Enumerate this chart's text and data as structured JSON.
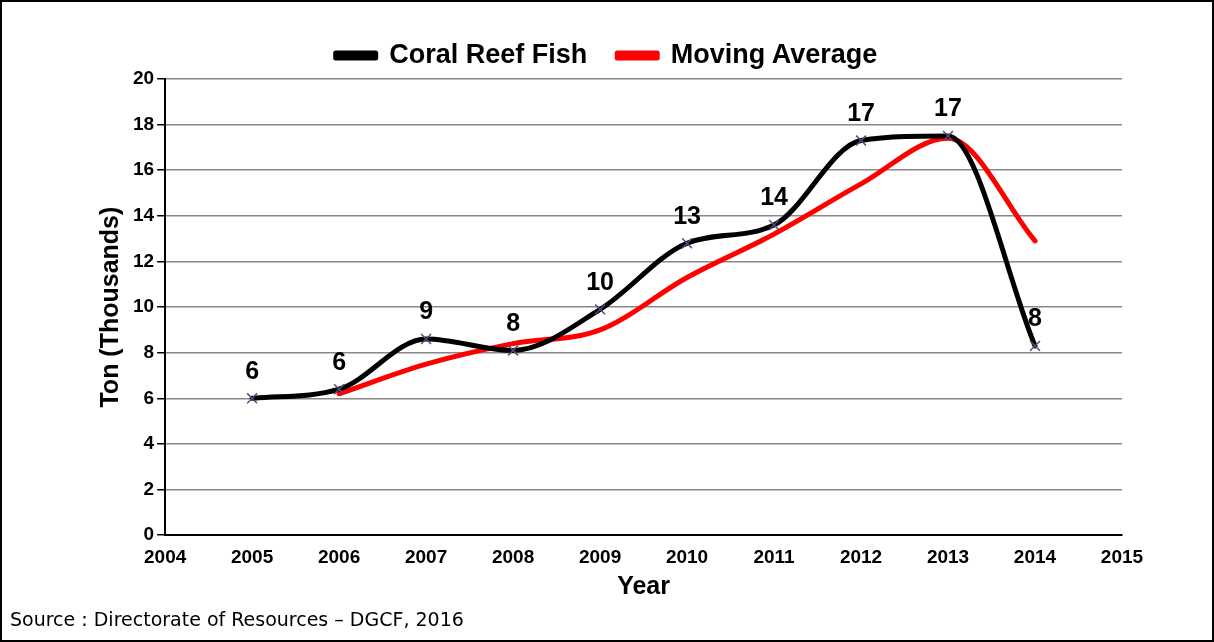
{
  "chart_data": {
    "type": "line",
    "xlabel": "Year",
    "ylabel": "Ton (Thousands)",
    "x": [
      2005,
      2006,
      2007,
      2008,
      2009,
      2010,
      2011,
      2012,
      2013,
      2014
    ],
    "series": [
      {
        "name": "Coral Reef Fish",
        "color": "#000000",
        "marker": "cross",
        "values": [
          6.0,
          6.4,
          8.6,
          8.1,
          9.9,
          12.8,
          13.6,
          17.3,
          17.5,
          8.3
        ],
        "value_labels": [
          "6",
          "6",
          "9",
          "8",
          "10",
          "13",
          "14",
          "17",
          "17",
          "8"
        ]
      },
      {
        "name": "Moving Average",
        "color": "#ff0000",
        "marker": "none",
        "values": [
          null,
          6.2,
          7.5,
          8.4,
          9.0,
          11.3,
          13.2,
          15.4,
          17.4,
          12.9
        ]
      }
    ],
    "xlim": [
      2004,
      2015
    ],
    "xticks": [
      2004,
      2005,
      2006,
      2007,
      2008,
      2009,
      2010,
      2011,
      2012,
      2013,
      2014,
      2015
    ],
    "ylim": [
      0,
      20
    ],
    "yticks": [
      0,
      2,
      4,
      6,
      8,
      10,
      12,
      14,
      16,
      18,
      20
    ],
    "grid": "y",
    "legend": "top",
    "line_style": "solid",
    "annotations": [
      "Source : Directorate of Resources – DGCF, 2016"
    ]
  }
}
